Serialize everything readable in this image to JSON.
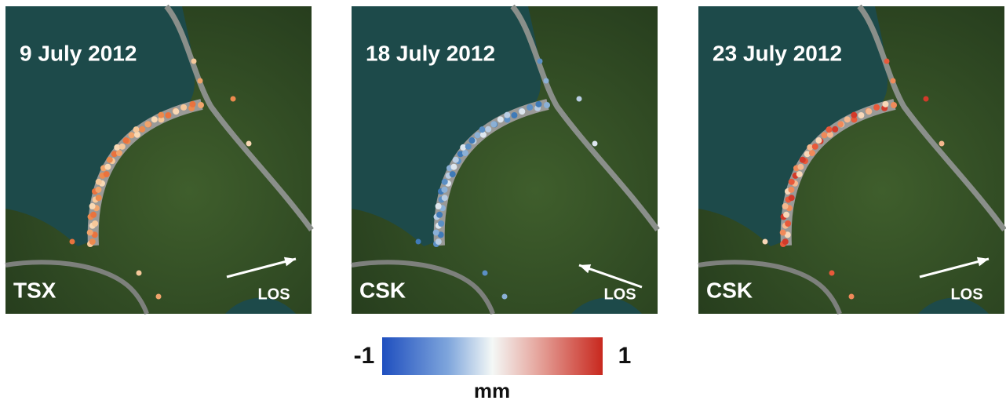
{
  "panels": [
    {
      "date": "9 July 2012",
      "sensor": "TSX",
      "direction": "LOS"
    },
    {
      "date": "18 July 2012",
      "sensor": "CSK",
      "direction": "LOS"
    },
    {
      "date": "23 July 2012",
      "sensor": "CSK",
      "direction": "LOS"
    }
  ],
  "colorbar": {
    "min": -1,
    "max": 1,
    "unit": "mm"
  }
}
